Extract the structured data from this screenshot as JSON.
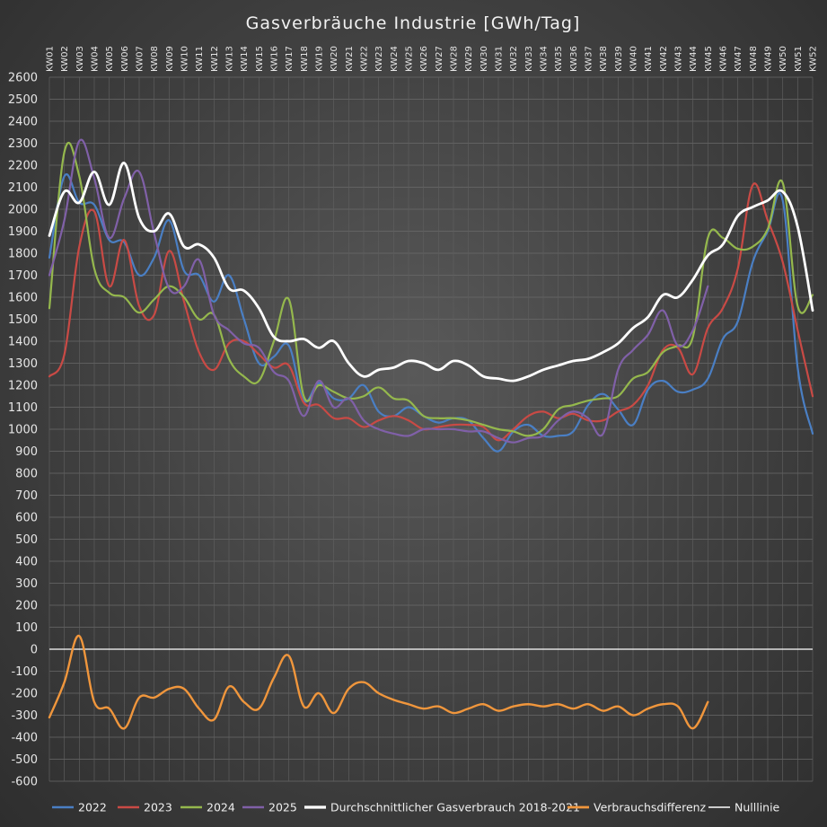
{
  "chart_data": {
    "type": "line",
    "title": "Gasverbräuche Industrie [GWh/Tag]",
    "xlabel": "",
    "ylabel": "",
    "ylim": [
      -600,
      2600
    ],
    "ytick_step": 100,
    "grid": true,
    "legend_position": "bottom",
    "categories": [
      "KW01",
      "KW02",
      "KW03",
      "KW04",
      "KW05",
      "KW06",
      "KW07",
      "KW08",
      "KW09",
      "KW10",
      "KW11",
      "KW12",
      "KW13",
      "KW14",
      "KW15",
      "KW16",
      "KW17",
      "KW18",
      "KW19",
      "KW20",
      "KW21",
      "KW22",
      "KW23",
      "KW24",
      "KW25",
      "KW26",
      "KW27",
      "KW28",
      "KW29",
      "KW30",
      "KW31",
      "KW32",
      "KW33",
      "KW34",
      "KW35",
      "KW36",
      "KW37",
      "KW38",
      "KW39",
      "KW40",
      "KW41",
      "KW42",
      "KW43",
      "KW44",
      "KW45",
      "KW46",
      "KW47",
      "KW48",
      "KW49",
      "KW50",
      "KW51",
      "KW52"
    ],
    "series": [
      {
        "name": "2022",
        "color": "#4a7fc4",
        "width": 2.2,
        "values": [
          1780,
          2150,
          2030,
          2020,
          1860,
          1850,
          1700,
          1780,
          1950,
          1720,
          1700,
          1580,
          1700,
          1500,
          1300,
          1330,
          1380,
          1130,
          1210,
          1140,
          1140,
          1200,
          1080,
          1060,
          1100,
          1060,
          1030,
          1050,
          1040,
          960,
          900,
          990,
          1020,
          970,
          970,
          990,
          1110,
          1160,
          1090,
          1020,
          1180,
          1220,
          1170,
          1180,
          1230,
          1410,
          1490,
          1760,
          1900,
          2040,
          1280,
          980
        ]
      },
      {
        "name": "2023",
        "color": "#c94a45",
        "width": 2.2,
        "values": [
          1240,
          1340,
          1830,
          1990,
          1650,
          1860,
          1560,
          1520,
          1810,
          1580,
          1350,
          1270,
          1390,
          1400,
          1340,
          1280,
          1290,
          1120,
          1110,
          1050,
          1050,
          1010,
          1040,
          1060,
          1040,
          1000,
          1010,
          1020,
          1020,
          1010,
          950,
          1000,
          1060,
          1080,
          1050,
          1070,
          1040,
          1040,
          1080,
          1110,
          1200,
          1360,
          1370,
          1250,
          1460,
          1550,
          1730,
          2110,
          1950,
          1760,
          1450,
          1150
        ]
      },
      {
        "name": "2024",
        "color": "#95b84d",
        "width": 2.2,
        "values": [
          1550,
          2260,
          2150,
          1730,
          1620,
          1600,
          1530,
          1590,
          1650,
          1600,
          1500,
          1520,
          1320,
          1240,
          1220,
          1400,
          1590,
          1150,
          1200,
          1170,
          1140,
          1150,
          1190,
          1140,
          1130,
          1060,
          1050,
          1050,
          1040,
          1020,
          1000,
          990,
          970,
          1000,
          1090,
          1110,
          1130,
          1140,
          1150,
          1230,
          1260,
          1350,
          1380,
          1420,
          1870,
          1870,
          1820,
          1830,
          1910,
          2120,
          1560,
          1610
        ]
      },
      {
        "name": "2025",
        "color": "#8060a8",
        "width": 2.2,
        "values": [
          1700,
          1950,
          2310,
          2140,
          1870,
          2050,
          2170,
          1890,
          1640,
          1650,
          1770,
          1520,
          1450,
          1390,
          1370,
          1260,
          1220,
          1060,
          1220,
          1100,
          1140,
          1040,
          1000,
          980,
          970,
          1000,
          1000,
          1000,
          990,
          990,
          960,
          940,
          960,
          970,
          1040,
          1080,
          1050,
          980,
          1270,
          1360,
          1430,
          1540,
          1380,
          1450,
          1650,
          null,
          null,
          null,
          null,
          null,
          null,
          null
        ]
      },
      {
        "name": "Durchschnittlicher Gasverbrauch 2018-2021",
        "color": "#ffffff",
        "width": 2.8,
        "values": [
          1880,
          2080,
          2030,
          2170,
          2020,
          2210,
          1960,
          1900,
          1980,
          1830,
          1840,
          1780,
          1640,
          1630,
          1550,
          1420,
          1400,
          1410,
          1370,
          1400,
          1300,
          1240,
          1270,
          1280,
          1310,
          1300,
          1270,
          1310,
          1290,
          1240,
          1230,
          1220,
          1240,
          1270,
          1290,
          1310,
          1320,
          1350,
          1390,
          1460,
          1510,
          1610,
          1600,
          1680,
          1790,
          1840,
          1970,
          2010,
          2040,
          2080,
          1920,
          1540
        ]
      },
      {
        "name": "Verbrauchsdifferenz",
        "color": "#f0963c",
        "width": 2.4,
        "values": [
          -310,
          -150,
          60,
          -240,
          -270,
          -360,
          -220,
          -220,
          -180,
          -180,
          -270,
          -320,
          -170,
          -240,
          -270,
          -130,
          -30,
          -260,
          -200,
          -290,
          -180,
          -150,
          -200,
          -230,
          -250,
          -270,
          -260,
          -290,
          -270,
          -250,
          -280,
          -260,
          -250,
          -260,
          -250,
          -270,
          -250,
          -280,
          -260,
          -300,
          -270,
          -250,
          -260,
          -360,
          -240,
          null,
          null,
          null,
          null,
          null,
          null,
          null
        ]
      },
      {
        "name": "Nulllinie",
        "color": "#ffffff",
        "width": 1.2,
        "values": [
          0,
          0,
          0,
          0,
          0,
          0,
          0,
          0,
          0,
          0,
          0,
          0,
          0,
          0,
          0,
          0,
          0,
          0,
          0,
          0,
          0,
          0,
          0,
          0,
          0,
          0,
          0,
          0,
          0,
          0,
          0,
          0,
          0,
          0,
          0,
          0,
          0,
          0,
          0,
          0,
          0,
          0,
          0,
          0,
          0,
          0,
          0,
          0,
          0,
          0,
          0,
          0
        ]
      }
    ]
  }
}
